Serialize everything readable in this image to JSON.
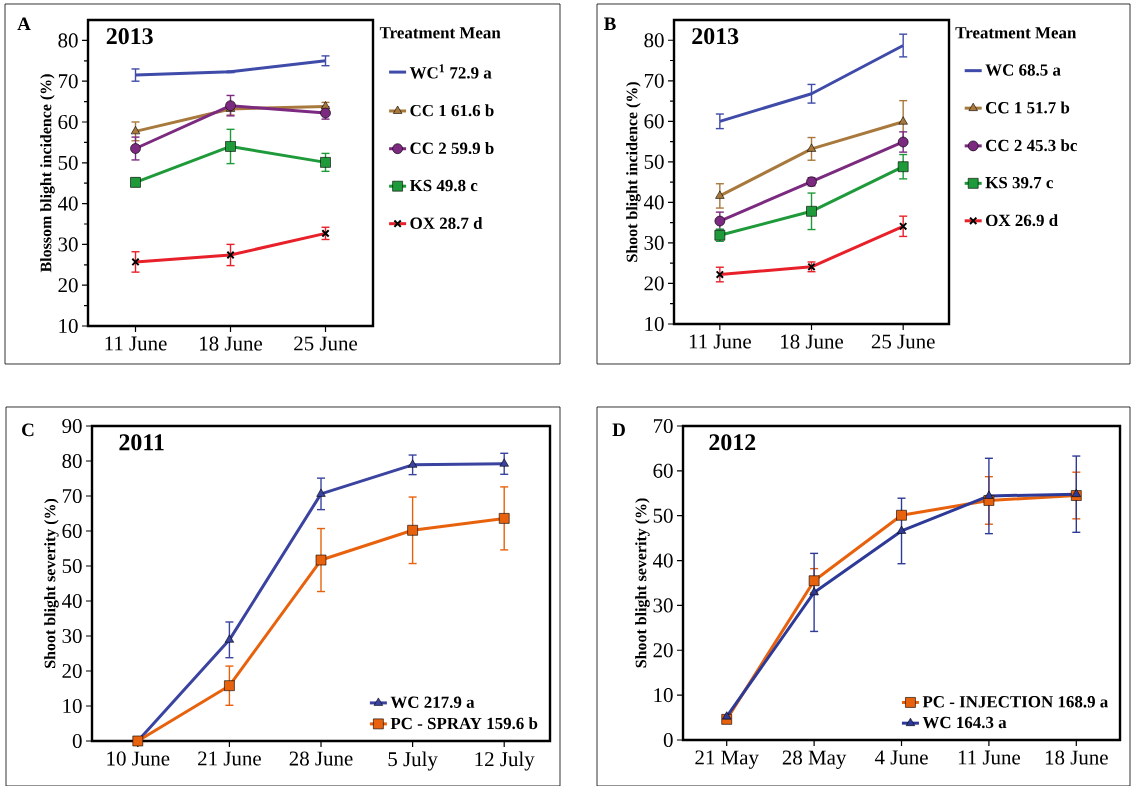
{
  "chart_data": [
    {
      "type": "line",
      "title": "A",
      "subtitle": "2013",
      "ylabel": "Blossom blight incidence (%)",
      "legend_title": "Treatment  Mean",
      "legend": "right",
      "categories": [
        "11 June",
        "18 June",
        "25 June"
      ],
      "ylim": [
        10,
        85
      ],
      "yticks": [
        10,
        20,
        30,
        40,
        50,
        60,
        70,
        80
      ],
      "series": [
        {
          "name": "WC$^{1}$   72.9 a",
          "color": "#3f4ba8",
          "values": [
            71.5,
            72.3,
            75.0
          ],
          "errors": [
            1.5,
            0.2,
            1.2
          ]
        },
        {
          "name": "CC 1   61.6 b",
          "color": "#a8793c",
          "marker": "triangle",
          "values": [
            57.7,
            63.2,
            63.8
          ],
          "errors": [
            2.3,
            1.5,
            1.0
          ]
        },
        {
          "name": "CC 2   59.9 b",
          "color": "#7b2a80",
          "marker": "circle",
          "values": [
            53.5,
            64.0,
            62.2
          ],
          "errors": [
            2.8,
            2.5,
            1.5
          ]
        },
        {
          "name": "KS   49.8 c",
          "color": "#1f9a3a",
          "marker": "square",
          "values": [
            45.2,
            54.0,
            50.1
          ],
          "errors": [
            1.0,
            4.2,
            2.2
          ]
        },
        {
          "name": "OX   28.7 d",
          "color": "#e8202a",
          "marker": "cross",
          "values": [
            25.7,
            27.4,
            32.7
          ],
          "errors": [
            2.5,
            2.6,
            1.5
          ]
        }
      ]
    },
    {
      "type": "line",
      "title": "B",
      "subtitle": "2013",
      "ylabel": "Shoot blight incidence (%)",
      "legend_title": "Treatment  Mean",
      "legend": "right",
      "categories": [
        "11 June",
        "18 June",
        "25 June"
      ],
      "ylim": [
        10,
        85
      ],
      "yticks": [
        10,
        20,
        30,
        40,
        50,
        60,
        70,
        80
      ],
      "series": [
        {
          "name": "WC   68.5 a",
          "color": "#3f4ba8",
          "values": [
            60.0,
            66.8,
            78.7
          ],
          "errors": [
            1.8,
            2.3,
            2.8
          ]
        },
        {
          "name": "CC 1   51.7 b",
          "color": "#a8793c",
          "marker": "triangle",
          "values": [
            41.6,
            53.2,
            59.9
          ],
          "errors": [
            3.0,
            2.8,
            5.2
          ]
        },
        {
          "name": "CC 2   45.3 bc",
          "color": "#7b2a80",
          "marker": "circle",
          "values": [
            35.4,
            45.1,
            54.9
          ],
          "errors": [
            2.2,
            1.0,
            2.5
          ]
        },
        {
          "name": "KS   39.7 c",
          "color": "#1f9a3a",
          "marker": "square",
          "values": [
            31.9,
            37.8,
            48.8
          ],
          "errors": [
            1.5,
            4.5,
            3.0
          ]
        },
        {
          "name": "OX   26.9 d",
          "color": "#e8202a",
          "marker": "cross",
          "values": [
            22.2,
            24.1,
            34.1
          ],
          "errors": [
            1.8,
            1.2,
            2.5
          ]
        }
      ]
    },
    {
      "type": "line",
      "title": "C",
      "subtitle": "2011",
      "ylabel": "Shoot blight severity (%)",
      "legend": "bottom right",
      "categories": [
        "10 June",
        "21 June",
        "28 June",
        "5 July",
        "12 July"
      ],
      "ylim": [
        0,
        90
      ],
      "yticks": [
        0,
        10,
        20,
        30,
        40,
        50,
        60,
        70,
        80,
        90
      ],
      "series": [
        {
          "name": "WC   217.9 a",
          "color": "#3a43a0",
          "marker": "triangle",
          "values": [
            0,
            28.9,
            70.6,
            78.9,
            79.2
          ],
          "errors": [
            null,
            5.1,
            4.5,
            2.8,
            3.0
          ]
        },
        {
          "name": "PC - SPRAY   159.6 b",
          "color": "#e8620e",
          "marker": "square",
          "values": [
            0,
            15.8,
            51.7,
            60.2,
            63.6
          ],
          "errors": [
            null,
            5.6,
            9.0,
            9.5,
            9.0
          ]
        }
      ]
    },
    {
      "type": "line",
      "title": "D",
      "subtitle": "2012",
      "ylabel": "Shoot blight severity (%)",
      "legend": "bottom right",
      "categories": [
        "21 May",
        "28 May",
        "4 June",
        "11 June",
        "18 June"
      ],
      "ylim": [
        0,
        70
      ],
      "yticks": [
        0,
        10,
        20,
        30,
        40,
        50,
        60,
        70
      ],
      "series": [
        {
          "name": "PC - INJECTION   168.9 a",
          "color": "#e8620e",
          "marker": "square",
          "values": [
            4.6,
            35.5,
            50.1,
            53.4,
            54.5
          ],
          "errors": [
            null,
            2.7,
            null,
            5.3,
            5.2
          ]
        },
        {
          "name": "WC   164.3 a",
          "color": "#2e3a97",
          "marker": "triangle",
          "values": [
            5.2,
            32.9,
            46.6,
            54.4,
            54.8
          ],
          "errors": [
            null,
            8.7,
            7.3,
            8.4,
            8.5
          ]
        }
      ]
    }
  ]
}
